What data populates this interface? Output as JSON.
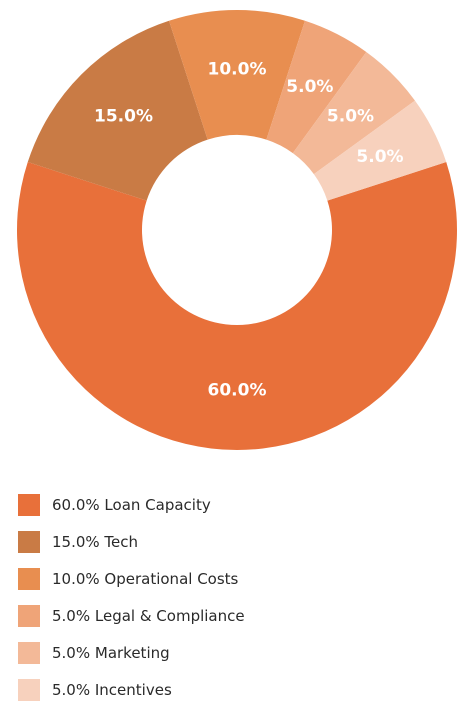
{
  "chart_data": {
    "type": "pie",
    "variant": "donut",
    "slices": [
      {
        "label": "Loan Capacity",
        "value": 60.0,
        "display": "60.0%",
        "legend": "60.0% Loan Capacity",
        "color": "#E8703A"
      },
      {
        "label": "Tech",
        "value": 15.0,
        "display": "15.0%",
        "legend": "15.0% Tech",
        "color": "#C97B45"
      },
      {
        "label": "Operational Costs",
        "value": 10.0,
        "display": "10.0%",
        "legend": "10.0% Operational Costs",
        "color": "#E88E50"
      },
      {
        "label": "Legal & Compliance",
        "value": 5.0,
        "display": "5.0%",
        "legend": "5.0% Legal & Compliance",
        "color": "#EFA478"
      },
      {
        "label": "Marketing",
        "value": 5.0,
        "display": "5.0%",
        "legend": "5.0% Marketing",
        "color": "#F3B998"
      },
      {
        "label": "Incentives",
        "value": 5.0,
        "display": "5.0%",
        "legend": "5.0% Incentives",
        "color": "#F7D1BD"
      }
    ],
    "legend_position": "bottom-left"
  }
}
